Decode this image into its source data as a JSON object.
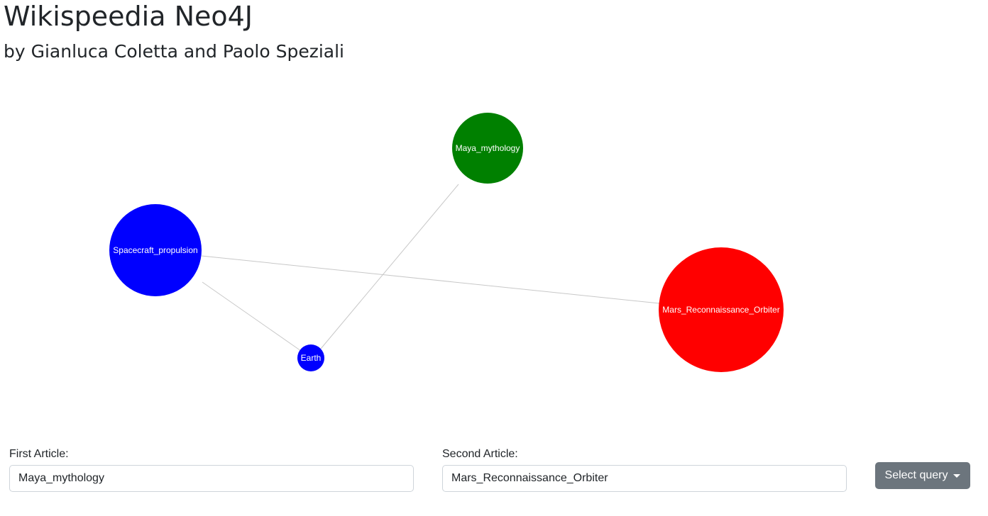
{
  "header": {
    "title": "Wikispeedia Neo4J",
    "subtitle": "by Gianluca Coletta and Paolo Speziali"
  },
  "graph": {
    "nodes": [
      {
        "id": "maya",
        "label": "Maya_mythology",
        "color": "#008000"
      },
      {
        "id": "spacecraft",
        "label": "Spacecraft_propulsion",
        "color": "#0000ff"
      },
      {
        "id": "earth",
        "label": "Earth",
        "color": "#0000ff"
      },
      {
        "id": "mars",
        "label": "Mars_Reconnaissance_Orbiter",
        "color": "#ff0000"
      }
    ],
    "edges": [
      {
        "from": "maya",
        "to": "earth"
      },
      {
        "from": "spacecraft",
        "to": "earth"
      },
      {
        "from": "spacecraft",
        "to": "mars"
      }
    ]
  },
  "form": {
    "first_label": "First Article:",
    "first_value": "Maya_mythology",
    "second_label": "Second Article:",
    "second_value": "Mars_Reconnaissance_Orbiter",
    "query_button_label": "Select query",
    "query_button_color": "#6c757d"
  }
}
